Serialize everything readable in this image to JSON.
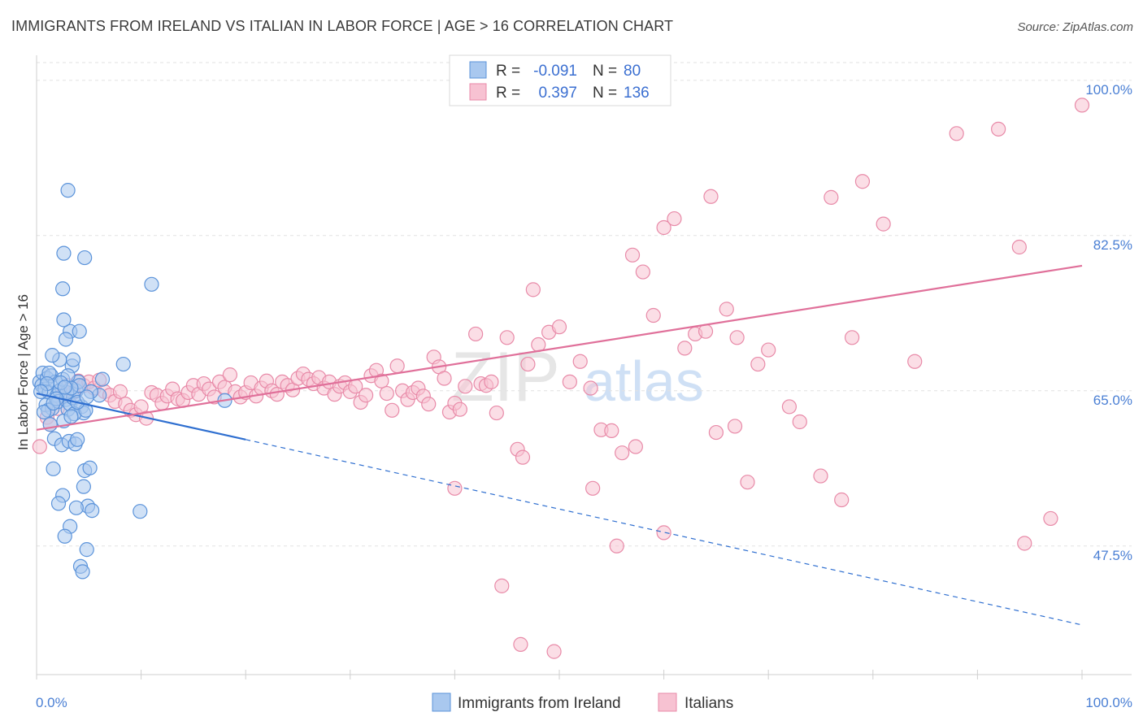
{
  "title": "IMMIGRANTS FROM IRELAND VS ITALIAN IN LABOR FORCE | AGE > 16 CORRELATION CHART",
  "source": "Source: ZipAtlas.com",
  "watermark": {
    "part1": "ZIP",
    "part2": "atlas"
  },
  "colors": {
    "blue_fill": "#a9c8ef",
    "blue_stroke": "#5b93da",
    "blue_line": "#2f6fd0",
    "pink_fill": "#f7c2d2",
    "pink_stroke": "#e88aa8",
    "pink_line": "#e0709a",
    "axis_label": "#4a7fd4"
  },
  "legend": {
    "rows": [
      {
        "r_label": "R =",
        "r_value": "-0.091",
        "n_label": "N =",
        "n_value": "80"
      },
      {
        "r_label": "R =",
        "r_value": "0.397",
        "n_label": "N =",
        "n_value": "136"
      }
    ]
  },
  "chart_data": {
    "type": "scatter",
    "title": "IMMIGRANTS FROM IRELAND VS ITALIAN IN LABOR FORCE | AGE > 16 CORRELATION CHART",
    "xlabel": "",
    "ylabel": "In Labor Force | Age > 16",
    "x_tick_labels": [
      "0.0%",
      "100.0%"
    ],
    "y_tick_labels": [
      "100.0%",
      "82.5%",
      "65.0%",
      "47.5%"
    ],
    "y_ticks": [
      100.0,
      82.5,
      65.0,
      47.5
    ],
    "xlim": [
      0,
      100
    ],
    "ylim": [
      33,
      102
    ],
    "grid": true,
    "legend_position": "top-center",
    "series": [
      {
        "name": "Immigrants from Ireland",
        "color": "blue",
        "trend": {
          "x0": 0,
          "y0": 64.7,
          "x1": 20,
          "y1": 59.5,
          "dash_x1": 100,
          "dash_y1": 38.6
        },
        "points": [
          [
            0.3,
            66.0
          ],
          [
            0.5,
            65.6
          ],
          [
            0.6,
            67.0
          ],
          [
            0.8,
            65.2
          ],
          [
            1.0,
            66.4
          ],
          [
            1.2,
            64.8
          ],
          [
            0.9,
            63.4
          ],
          [
            1.5,
            63.0
          ],
          [
            1.4,
            66.7
          ],
          [
            1.8,
            66.0
          ],
          [
            2.0,
            64.5
          ],
          [
            2.2,
            65.0
          ],
          [
            2.5,
            66.3
          ],
          [
            2.1,
            63.8
          ],
          [
            2.8,
            64.0
          ],
          [
            3.0,
            62.9
          ],
          [
            3.2,
            63.5
          ],
          [
            3.5,
            64.2
          ],
          [
            3.8,
            65.0
          ],
          [
            4.0,
            66.0
          ],
          [
            4.3,
            63.2
          ],
          [
            4.5,
            62.5
          ],
          [
            1.1,
            62.8
          ],
          [
            1.3,
            61.2
          ],
          [
            2.6,
            61.6
          ],
          [
            3.6,
            62.4
          ],
          [
            3.4,
            67.8
          ],
          [
            2.2,
            68.5
          ],
          [
            2.9,
            64.8
          ],
          [
            4.1,
            65.6
          ],
          [
            1.7,
            59.6
          ],
          [
            2.4,
            58.9
          ],
          [
            3.1,
            59.3
          ],
          [
            3.7,
            59.0
          ],
          [
            3.9,
            59.5
          ],
          [
            1.6,
            56.2
          ],
          [
            4.6,
            56.0
          ],
          [
            5.1,
            56.3
          ],
          [
            2.5,
            53.2
          ],
          [
            4.5,
            54.2
          ],
          [
            2.1,
            52.3
          ],
          [
            4.9,
            52.0
          ],
          [
            3.8,
            51.8
          ],
          [
            5.3,
            51.5
          ],
          [
            9.9,
            51.4
          ],
          [
            3.2,
            49.7
          ],
          [
            2.7,
            48.6
          ],
          [
            4.8,
            47.1
          ],
          [
            4.2,
            45.2
          ],
          [
            4.4,
            44.6
          ],
          [
            2.5,
            76.5
          ],
          [
            3.2,
            71.7
          ],
          [
            2.8,
            70.8
          ],
          [
            4.1,
            71.7
          ],
          [
            3.5,
            68.5
          ],
          [
            2.6,
            73.0
          ],
          [
            1.2,
            67.0
          ],
          [
            1.0,
            65.8
          ],
          [
            3.0,
            66.7
          ],
          [
            6.3,
            66.3
          ],
          [
            6.0,
            64.5
          ],
          [
            4.7,
            62.8
          ],
          [
            5.2,
            64.9
          ],
          [
            3.3,
            65.3
          ],
          [
            1.9,
            64.1
          ],
          [
            0.7,
            62.6
          ],
          [
            8.3,
            68.0
          ],
          [
            11.0,
            77.0
          ],
          [
            2.6,
            80.5
          ],
          [
            4.6,
            80.0
          ],
          [
            3.0,
            87.6
          ],
          [
            18.0,
            63.9
          ],
          [
            1.5,
            69.0
          ],
          [
            2.3,
            65.9
          ],
          [
            3.9,
            63.7
          ],
          [
            4.8,
            64.3
          ],
          [
            0.4,
            64.9
          ],
          [
            1.6,
            63.6
          ],
          [
            2.7,
            65.4
          ],
          [
            3.3,
            62.1
          ]
        ]
      },
      {
        "name": "Italians",
        "color": "pink",
        "trend": {
          "x0": 0,
          "y0": 60.6,
          "x1": 100,
          "y1": 79.1
        },
        "points": [
          [
            0.3,
            58.7
          ],
          [
            1.0,
            62.0
          ],
          [
            1.3,
            61.2
          ],
          [
            2.0,
            63.0
          ],
          [
            2.5,
            64.5
          ],
          [
            3.0,
            65.6
          ],
          [
            3.5,
            64.8
          ],
          [
            4.0,
            66.1
          ],
          [
            4.5,
            65.6
          ],
          [
            5.0,
            66.0
          ],
          [
            5.5,
            65.3
          ],
          [
            6.0,
            66.2
          ],
          [
            6.5,
            64.9
          ],
          [
            7.0,
            64.5
          ],
          [
            7.5,
            63.8
          ],
          [
            8.0,
            64.9
          ],
          [
            8.5,
            63.5
          ],
          [
            9.0,
            62.8
          ],
          [
            9.5,
            62.3
          ],
          [
            10.0,
            63.2
          ],
          [
            10.5,
            61.9
          ],
          [
            11.0,
            64.8
          ],
          [
            11.5,
            64.5
          ],
          [
            12.0,
            63.6
          ],
          [
            12.5,
            64.4
          ],
          [
            13.0,
            65.2
          ],
          [
            13.5,
            64.1
          ],
          [
            14.0,
            63.9
          ],
          [
            14.5,
            64.8
          ],
          [
            15.0,
            65.6
          ],
          [
            15.5,
            64.6
          ],
          [
            16.0,
            65.8
          ],
          [
            16.5,
            65.2
          ],
          [
            17.0,
            64.3
          ],
          [
            17.5,
            66.0
          ],
          [
            18.0,
            65.4
          ],
          [
            18.5,
            66.8
          ],
          [
            19.0,
            64.9
          ],
          [
            19.5,
            64.3
          ],
          [
            20.0,
            64.8
          ],
          [
            20.5,
            65.9
          ],
          [
            21.0,
            64.4
          ],
          [
            21.5,
            65.3
          ],
          [
            22.0,
            66.1
          ],
          [
            22.5,
            65.0
          ],
          [
            23.0,
            64.6
          ],
          [
            23.5,
            66.0
          ],
          [
            24.0,
            65.6
          ],
          [
            24.5,
            65.1
          ],
          [
            25.0,
            66.4
          ],
          [
            25.5,
            66.9
          ],
          [
            26.0,
            66.3
          ],
          [
            26.5,
            65.8
          ],
          [
            27.0,
            66.5
          ],
          [
            27.5,
            65.3
          ],
          [
            28.0,
            66.0
          ],
          [
            28.5,
            64.6
          ],
          [
            29.0,
            65.5
          ],
          [
            29.5,
            65.9
          ],
          [
            30.0,
            64.9
          ],
          [
            30.5,
            65.5
          ],
          [
            31.0,
            63.7
          ],
          [
            31.5,
            64.5
          ],
          [
            32.0,
            66.7
          ],
          [
            32.5,
            67.3
          ],
          [
            33.0,
            66.1
          ],
          [
            33.5,
            64.7
          ],
          [
            34.0,
            62.8
          ],
          [
            34.5,
            67.8
          ],
          [
            35.0,
            65.0
          ],
          [
            35.5,
            64.0
          ],
          [
            36.0,
            64.8
          ],
          [
            36.5,
            65.3
          ],
          [
            37.0,
            64.4
          ],
          [
            37.5,
            63.5
          ],
          [
            38.0,
            68.8
          ],
          [
            38.5,
            67.7
          ],
          [
            39.0,
            66.4
          ],
          [
            39.5,
            62.6
          ],
          [
            40.0,
            63.6
          ],
          [
            40.5,
            62.9
          ],
          [
            41.0,
            65.5
          ],
          [
            42.0,
            71.4
          ],
          [
            42.5,
            65.8
          ],
          [
            43.0,
            65.6
          ],
          [
            43.5,
            66.0
          ],
          [
            44.0,
            62.5
          ],
          [
            45.0,
            71.0
          ],
          [
            46.0,
            58.4
          ],
          [
            46.5,
            57.5
          ],
          [
            47.0,
            68.0
          ],
          [
            47.5,
            76.4
          ],
          [
            48.0,
            70.2
          ],
          [
            49.0,
            71.6
          ],
          [
            50.0,
            72.2
          ],
          [
            51.0,
            66.0
          ],
          [
            52.0,
            68.3
          ],
          [
            53.0,
            65.3
          ],
          [
            54.0,
            60.6
          ],
          [
            55.0,
            60.5
          ],
          [
            56.0,
            58.0
          ],
          [
            57.0,
            80.3
          ],
          [
            58.0,
            78.4
          ],
          [
            59.0,
            73.5
          ],
          [
            60.0,
            83.4
          ],
          [
            61.0,
            84.4
          ],
          [
            62.0,
            69.8
          ],
          [
            63.0,
            71.4
          ],
          [
            64.0,
            71.7
          ],
          [
            65.0,
            60.3
          ],
          [
            66.0,
            74.2
          ],
          [
            67.0,
            71.0
          ],
          [
            68.0,
            54.7
          ],
          [
            69.0,
            68.0
          ],
          [
            70.0,
            69.6
          ],
          [
            72.0,
            63.2
          ],
          [
            73.0,
            61.5
          ],
          [
            75.0,
            55.4
          ],
          [
            76.0,
            86.8
          ],
          [
            77.0,
            52.7
          ],
          [
            78.0,
            71.0
          ],
          [
            79.0,
            88.6
          ],
          [
            81.0,
            83.8
          ],
          [
            84.0,
            68.3
          ],
          [
            88.0,
            94.0
          ],
          [
            92.0,
            94.5
          ],
          [
            94.0,
            81.2
          ],
          [
            97.0,
            50.6
          ],
          [
            100.0,
            97.2
          ],
          [
            94.5,
            47.8
          ],
          [
            40.0,
            54.0
          ],
          [
            44.5,
            43.0
          ],
          [
            46.3,
            36.4
          ],
          [
            49.5,
            35.6
          ],
          [
            53.2,
            54.0
          ],
          [
            57.3,
            58.7
          ],
          [
            55.5,
            47.5
          ],
          [
            60.0,
            49.0
          ],
          [
            64.5,
            86.9
          ],
          [
            66.8,
            61.0
          ]
        ]
      }
    ]
  },
  "bottom_legend": {
    "items": [
      {
        "label": "Immigrants from Ireland"
      },
      {
        "label": "Italians"
      }
    ]
  }
}
